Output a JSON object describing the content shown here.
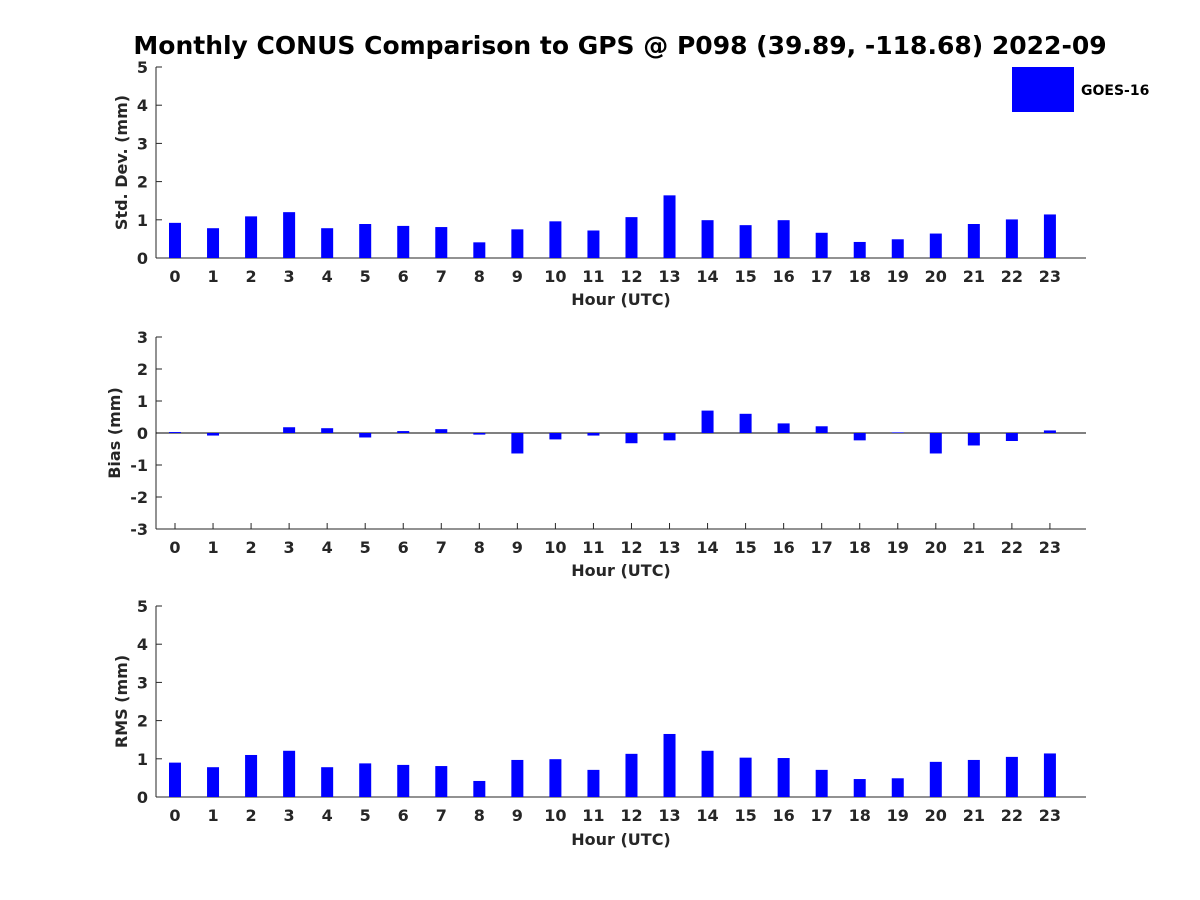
{
  "title": "Monthly CONUS Comparison to GPS @ P098 (39.89, -118.68) 2022-09",
  "legend": {
    "label": "GOES-16",
    "color": "#0000ff"
  },
  "chart_data": [
    {
      "type": "bar",
      "id": "stddev",
      "ylabel": "Std. Dev. (mm)",
      "xlabel": "Hour (UTC)",
      "ylim": [
        0,
        5
      ],
      "yticks": [
        0,
        1,
        2,
        3,
        4,
        5
      ],
      "categories": [
        "0",
        "1",
        "2",
        "3",
        "4",
        "5",
        "6",
        "7",
        "8",
        "9",
        "10",
        "11",
        "12",
        "13",
        "14",
        "15",
        "16",
        "17",
        "18",
        "19",
        "20",
        "21",
        "22",
        "23"
      ],
      "series": [
        {
          "name": "GOES-16",
          "color": "#0000ff",
          "values": [
            0.92,
            0.78,
            1.09,
            1.2,
            0.78,
            0.89,
            0.84,
            0.81,
            0.41,
            0.75,
            0.96,
            0.72,
            1.07,
            1.64,
            0.99,
            0.86,
            0.99,
            0.66,
            0.42,
            0.49,
            0.64,
            0.89,
            1.01,
            1.14
          ]
        }
      ]
    },
    {
      "type": "bar",
      "id": "bias",
      "ylabel": "Bias (mm)",
      "xlabel": "Hour (UTC)",
      "ylim": [
        -3,
        3
      ],
      "yticks": [
        -3,
        -2,
        -1,
        0,
        1,
        2,
        3
      ],
      "categories": [
        "0",
        "1",
        "2",
        "3",
        "4",
        "5",
        "6",
        "7",
        "8",
        "9",
        "10",
        "11",
        "12",
        "13",
        "14",
        "15",
        "16",
        "17",
        "18",
        "19",
        "20",
        "21",
        "22",
        "23"
      ],
      "series": [
        {
          "name": "GOES-16",
          "color": "#0000ff",
          "values": [
            0.03,
            -0.08,
            0.0,
            0.18,
            0.15,
            -0.14,
            0.06,
            0.12,
            -0.05,
            -0.64,
            -0.2,
            -0.08,
            -0.32,
            -0.23,
            0.7,
            0.6,
            0.3,
            0.21,
            -0.23,
            0.02,
            -0.64,
            -0.39,
            -0.25,
            0.08
          ]
        }
      ]
    },
    {
      "type": "bar",
      "id": "rms",
      "ylabel": "RMS (mm)",
      "xlabel": "Hour (UTC)",
      "ylim": [
        0,
        5
      ],
      "yticks": [
        0,
        1,
        2,
        3,
        4,
        5
      ],
      "categories": [
        "0",
        "1",
        "2",
        "3",
        "4",
        "5",
        "6",
        "7",
        "8",
        "9",
        "10",
        "11",
        "12",
        "13",
        "14",
        "15",
        "16",
        "17",
        "18",
        "19",
        "20",
        "21",
        "22",
        "23"
      ],
      "series": [
        {
          "name": "GOES-16",
          "color": "#0000ff",
          "values": [
            0.9,
            0.78,
            1.1,
            1.21,
            0.78,
            0.88,
            0.84,
            0.81,
            0.42,
            0.97,
            0.99,
            0.71,
            1.13,
            1.65,
            1.21,
            1.03,
            1.02,
            0.71,
            0.47,
            0.49,
            0.92,
            0.97,
            1.05,
            1.14
          ]
        }
      ]
    }
  ]
}
